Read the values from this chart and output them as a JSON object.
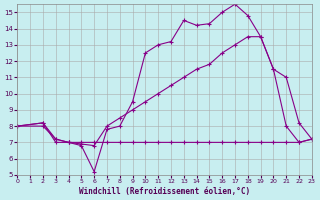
{
  "background_color": "#c8eef0",
  "grid_color": "#aaaaaa",
  "line_color": "#880088",
  "xlabel": "Windchill (Refroidissement éolien,°C)",
  "xlim": [
    0,
    23
  ],
  "ylim": [
    5,
    15.5
  ],
  "xticks": [
    0,
    1,
    2,
    3,
    4,
    5,
    6,
    7,
    8,
    9,
    10,
    11,
    12,
    13,
    14,
    15,
    16,
    17,
    18,
    19,
    20,
    21,
    22,
    23
  ],
  "yticks": [
    5,
    6,
    7,
    8,
    9,
    10,
    11,
    12,
    13,
    14,
    15
  ],
  "line1_x": [
    0,
    2,
    3,
    4,
    5,
    6,
    7,
    8,
    9,
    10,
    11,
    12,
    13,
    14,
    15,
    16,
    17,
    18,
    19,
    20,
    21,
    22,
    23
  ],
  "line1_y": [
    8.0,
    8.2,
    7.2,
    7.0,
    7.0,
    7.0,
    7.0,
    7.0,
    7.0,
    7.0,
    7.0,
    7.0,
    7.0,
    7.0,
    7.0,
    7.0,
    7.0,
    7.0,
    7.0,
    7.0,
    7.0,
    7.0,
    7.2
  ],
  "line2_x": [
    0,
    2,
    3,
    4,
    5,
    6,
    7,
    8,
    9,
    10,
    11,
    12,
    13,
    14,
    15,
    16,
    17,
    18,
    19,
    20,
    21,
    22,
    23
  ],
  "line2_y": [
    8.0,
    8.0,
    7.2,
    7.0,
    6.8,
    5.2,
    7.8,
    8.0,
    9.5,
    12.5,
    13.0,
    13.2,
    14.5,
    14.2,
    14.3,
    15.0,
    15.5,
    14.8,
    13.5,
    11.5,
    8.0,
    7.0,
    7.2
  ],
  "line3_x": [
    0,
    2,
    3,
    4,
    5,
    6,
    7,
    8,
    9,
    10,
    11,
    12,
    13,
    14,
    15,
    16,
    17,
    18,
    19,
    20,
    21,
    22,
    23
  ],
  "line3_y": [
    8.0,
    8.2,
    7.0,
    7.0,
    6.9,
    6.8,
    8.0,
    8.5,
    9.0,
    9.5,
    10.0,
    10.5,
    11.0,
    11.5,
    11.8,
    12.5,
    13.0,
    13.5,
    13.5,
    11.5,
    11.0,
    8.2,
    7.2
  ]
}
